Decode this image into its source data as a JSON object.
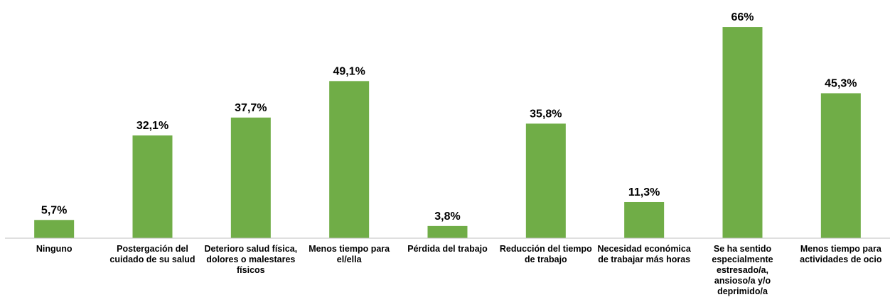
{
  "chart_data": {
    "type": "bar",
    "categories": [
      "Ninguno",
      "Postergación del cuidado de su salud",
      "Deterioro salud física, dolores o malestares físicos",
      "Menos tiempo para el/ella",
      "Pérdida del trabajo",
      "Reducción del tiempo de trabajo",
      "Necesidad económica de trabajar más horas",
      "Se ha sentido especialmente estresado/a, ansioso/a y/o deprimido/a",
      "Menos tiempo para actividades de ocio"
    ],
    "values": [
      5.7,
      32.1,
      37.7,
      49.1,
      3.8,
      35.8,
      11.3,
      66,
      45.3
    ],
    "value_labels": [
      "5,7%",
      "32,1%",
      "37,7%",
      "49,1%",
      "3,8%",
      "35,8%",
      "11,3%",
      "66%",
      "45,3%"
    ],
    "color": "#70ad47",
    "ylim": [
      0,
      70
    ]
  }
}
